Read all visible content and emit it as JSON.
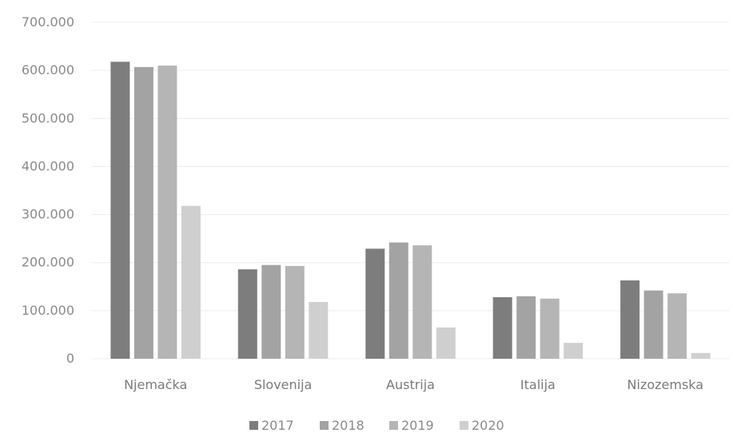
{
  "chart_data": {
    "type": "bar",
    "title": "",
    "xlabel": "",
    "ylabel": "",
    "categories": [
      "Njemačka",
      "Slovenija",
      "Austrija",
      "Italija",
      "Nizozemska"
    ],
    "series": [
      {
        "name": "2017",
        "color": "#7d7d7d",
        "values": [
          618000,
          186000,
          229000,
          128000,
          163000
        ]
      },
      {
        "name": "2018",
        "color": "#a3a3a3",
        "values": [
          607000,
          195000,
          242000,
          130000,
          142000
        ]
      },
      {
        "name": "2019",
        "color": "#b5b5b5",
        "values": [
          610000,
          193000,
          236000,
          125000,
          136000
        ]
      },
      {
        "name": "2020",
        "color": "#cfcfcf",
        "values": [
          318000,
          118000,
          65000,
          33000,
          12000
        ]
      }
    ],
    "ylim": [
      0,
      700000
    ],
    "yticks": [
      0,
      100000,
      200000,
      300000,
      400000,
      500000,
      600000,
      700000
    ],
    "ytick_labels": [
      "0",
      "100.000",
      "200.000",
      "300.000",
      "400.000",
      "500.000",
      "600.000",
      "700.000"
    ],
    "grid": true,
    "legend_position": "bottom"
  }
}
